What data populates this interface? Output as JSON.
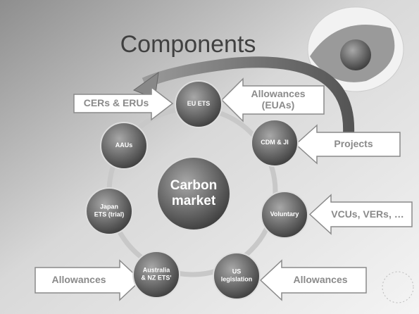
{
  "title": "Components",
  "center": [
    "Carbon",
    "market"
  ],
  "nodes": [
    {
      "lines": [
        "EU ETS"
      ]
    },
    {
      "lines": [
        "CDM & JI"
      ]
    },
    {
      "lines": [
        "Voluntary"
      ]
    },
    {
      "lines": [
        "US",
        "legislation"
      ]
    },
    {
      "lines": [
        "Australia",
        "& NZ ETS'"
      ]
    },
    {
      "lines": [
        "Japan",
        "ETS (trial)"
      ]
    },
    {
      "lines": [
        "AAUs"
      ]
    }
  ],
  "arrows": [
    {
      "lines": [
        "CERs & ERUs"
      ]
    },
    {
      "lines": [
        "Allowances",
        "(EUAs)"
      ]
    },
    {
      "lines": [
        "Projects"
      ]
    },
    {
      "lines": [
        "VCUs, VERs, …"
      ]
    },
    {
      "lines": [
        "Allowances"
      ]
    },
    {
      "lines": [
        "Allowances"
      ]
    }
  ]
}
